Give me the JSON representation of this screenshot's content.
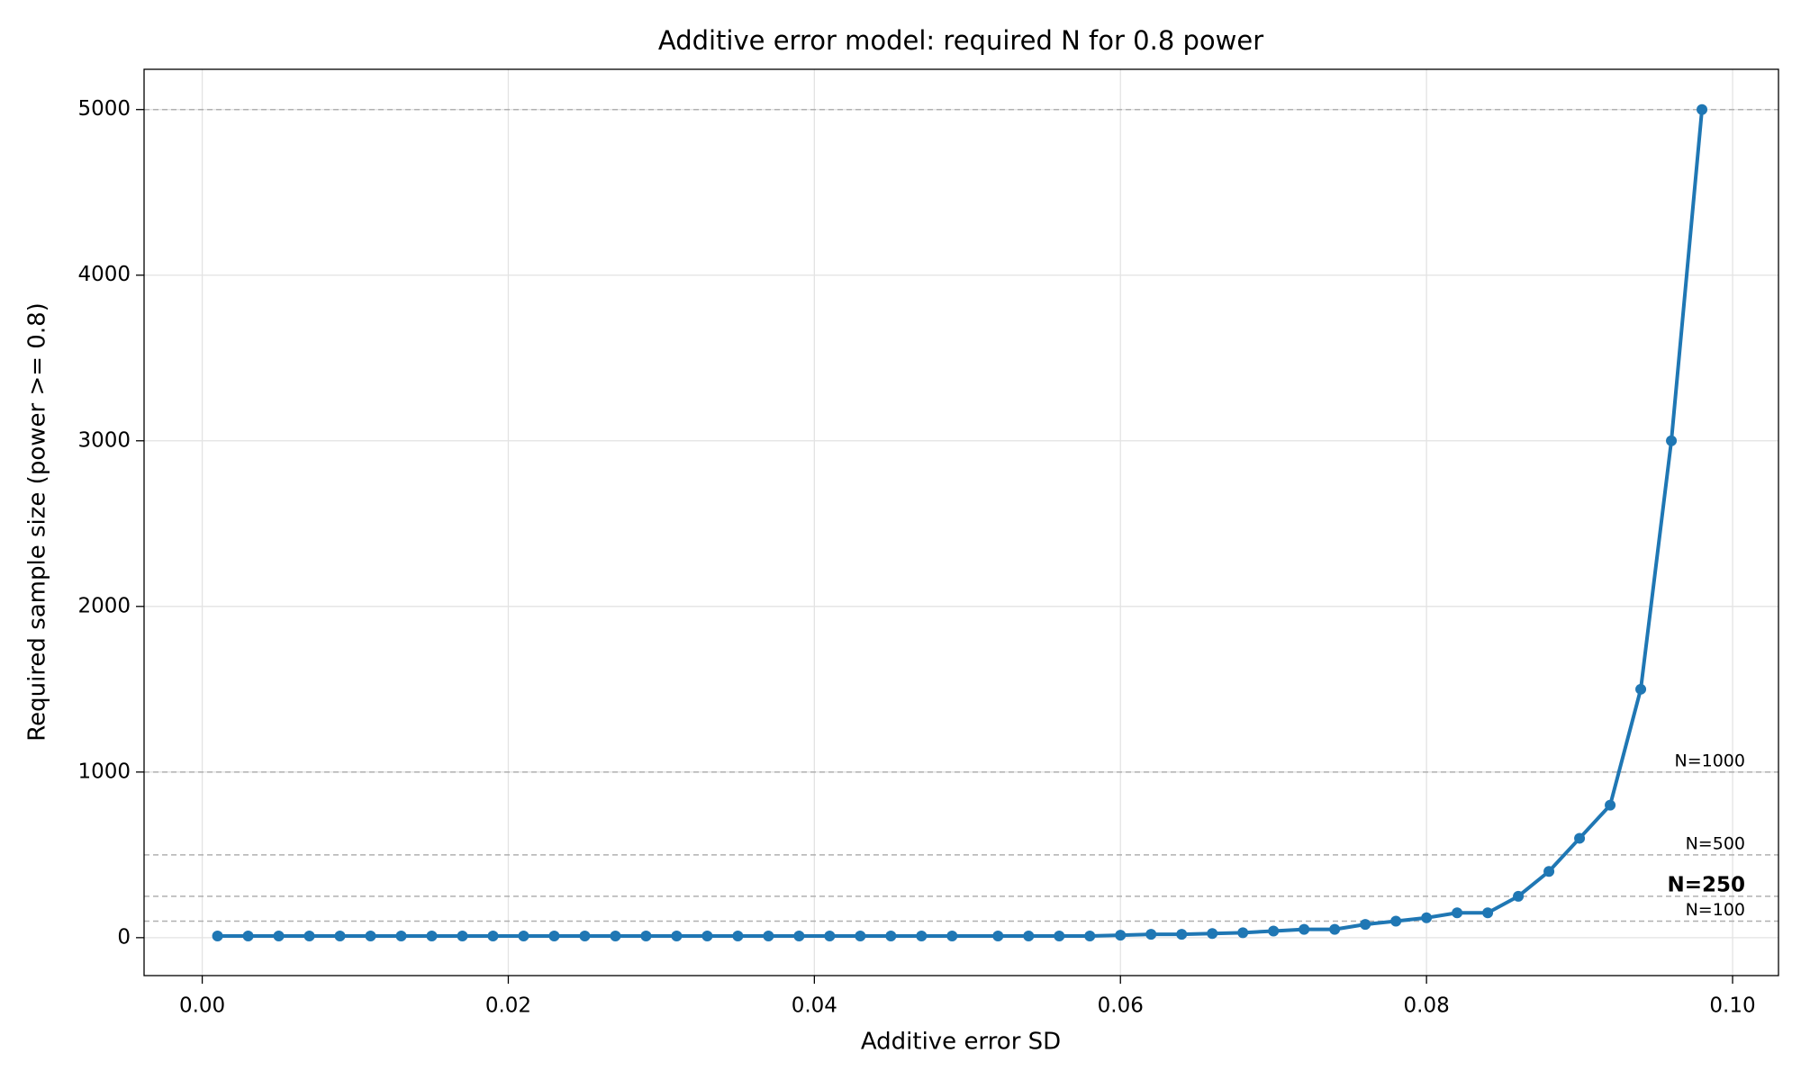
{
  "chart_data": {
    "type": "line",
    "title": "Additive error model: required N for 0.8 power",
    "x_label": "Additive error SD",
    "y_label": "Required sample size (power >= 0.8)",
    "x": [
      0.001,
      0.003,
      0.005,
      0.007,
      0.009,
      0.011,
      0.013,
      0.015,
      0.017,
      0.019,
      0.021,
      0.023,
      0.025,
      0.027,
      0.029,
      0.031,
      0.033,
      0.035,
      0.037,
      0.039,
      0.041,
      0.043,
      0.045,
      0.047,
      0.049,
      0.052,
      0.054,
      0.056,
      0.058,
      0.06,
      0.062,
      0.064,
      0.066,
      0.068,
      0.07,
      0.072,
      0.074,
      0.076,
      0.078,
      0.08,
      0.082,
      0.084,
      0.086,
      0.088,
      0.09,
      0.092,
      0.094,
      0.096,
      0.098
    ],
    "series": [
      {
        "name": "Required N",
        "color": "#1f77b4",
        "values": [
          10,
          10,
          10,
          10,
          10,
          10,
          10,
          10,
          10,
          10,
          10,
          10,
          10,
          10,
          10,
          10,
          10,
          10,
          10,
          10,
          10,
          10,
          10,
          10,
          10,
          10,
          10,
          10,
          10,
          15,
          20,
          20,
          25,
          30,
          40,
          50,
          50,
          80,
          100,
          120,
          150,
          150,
          250,
          400,
          600,
          800,
          1500,
          3000,
          5000
        ]
      }
    ],
    "reference_lines": [
      {
        "value": 5000
      },
      {
        "value": 1000,
        "label": "N=1000",
        "color": "#808080"
      },
      {
        "value": 500,
        "label": "N=500",
        "color": "#808080"
      },
      {
        "value": 250,
        "label": "N=250",
        "color": "#ff0000"
      },
      {
        "value": 100,
        "label": "N=100",
        "color": "#808080"
      }
    ],
    "xlim": [
      -0.0038,
      0.103
    ],
    "ylim": [
      -229,
      5243
    ],
    "xticks": [
      {
        "value": 0,
        "label": "0.00"
      },
      {
        "value": 0.02,
        "label": "0.02"
      },
      {
        "value": 0.04,
        "label": "0.04"
      },
      {
        "value": 0.06,
        "label": "0.06"
      },
      {
        "value": 0.08,
        "label": "0.08"
      },
      {
        "value": 0.1,
        "label": "0.10"
      }
    ],
    "yticks": [
      0,
      1000,
      2000,
      3000,
      4000,
      5000
    ],
    "grid": true
  }
}
